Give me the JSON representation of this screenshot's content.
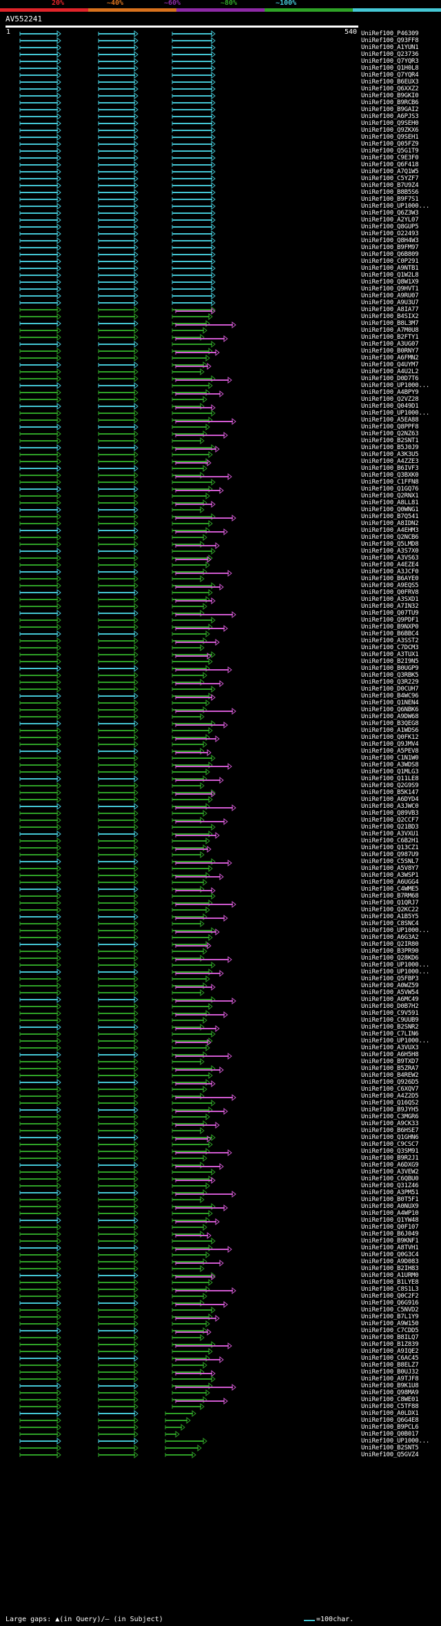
{
  "identity_bands": [
    {
      "label": "20%",
      "color": "#e1242a",
      "from_pct": 0,
      "to_pct": 20
    },
    {
      "label": "~40%",
      "color": "#d9721d",
      "from_pct": 20,
      "to_pct": 40
    },
    {
      "label": "~60%",
      "color": "#8e2aa6",
      "from_pct": 40,
      "to_pct": 60
    },
    {
      "label": "~80%",
      "color": "#2fa327",
      "from_pct": 60,
      "to_pct": 80
    },
    {
      "label": "~100%",
      "color": "#45c8d6",
      "from_pct": 80,
      "to_pct": 100
    }
  ],
  "query": {
    "id": "AV552241",
    "length": 540,
    "start": 1
  },
  "ruler": {
    "start_label": "1",
    "end_label": "540"
  },
  "hits": [
    "UniRef100_P46309",
    "UniRef100_Q93FF8",
    "UniRef100_A1YUN1",
    "UniRef100_Q23736",
    "UniRef100_Q7YQR3",
    "UniRef100_Q1H0L8",
    "UniRef100_Q7YQR4",
    "UniRef100_B6EUX3",
    "UniRef100_Q6XXZ2",
    "UniRef100_B9GKI0",
    "UniRef100_B9RCB6",
    "UniRef100_B9GAI2",
    "UniRef100_A6PJS3",
    "UniRef100_Q9SEH0",
    "UniRef100_Q9ZKX6",
    "UniRef100_Q9SEH1",
    "UniRef100_Q05FZ9",
    "UniRef100_Q5G1T9",
    "UniRef100_C9E3F0",
    "UniRef100_Q6F418",
    "UniRef100_A7Q1W5",
    "UniRef100_C5YZF7",
    "UniRef100_B7U9Z4",
    "UniRef100_B8B5S6",
    "UniRef100_B9F7S1",
    "UniRef100_UP1000...",
    "UniRef100_Q6Z3W3",
    "UniRef100_A2YL07",
    "UniRef100_Q8GUP5",
    "UniRef100_O22493",
    "UniRef100_Q8H4W3",
    "UniRef100_B9FM97",
    "UniRef100_Q6B809",
    "UniRef100_C0P291",
    "UniRef100_A9NTB1",
    "UniRef100_Q1W2L8",
    "UniRef100_Q8W1X9",
    "UniRef100_Q9HVT1",
    "UniRef100_A9RU07",
    "UniRef100_A9U3U7",
    "UniRef100_A8IA77",
    "UniRef100_B4SIX2",
    "UniRef100_B8L3M7",
    "UniRef100_A7M0U8",
    "UniRef100_B2FTY1",
    "UniRef100_A3UG07",
    "UniRef100_B0RNY7",
    "UniRef100_A6FMN2",
    "UniRef100_Q4UYM7",
    "UniRef100_A4U2L2",
    "UniRef100_D0D7T6",
    "UniRef100_UP1000...",
    "UniRef100_A4BPY9",
    "UniRef100_Q2VZ28",
    "UniRef100_Q049D1",
    "UniRef100_UP1000...",
    "UniRef100_A5EA88",
    "UniRef100_Q8PPF8",
    "UniRef100_Q2NZ63",
    "UniRef100_B2SNT1",
    "UniRef100_B5J0J9",
    "UniRef100_A3K3U5",
    "UniRef100_A4ZZE3",
    "UniRef100_B6IVF3",
    "UniRef100_Q3BXK0",
    "UniRef100_C1FFN8",
    "UniRef100_Q1GQ76",
    "UniRef100_Q2RNX1",
    "UniRef100_A8LL81",
    "UniRef100_Q0WNG1",
    "UniRef100_B7Q541",
    "UniRef100_A8IDN2",
    "UniRef100_A4EHM3",
    "UniRef100_Q2NCB6",
    "UniRef100_Q5LMD8",
    "UniRef100_A3S7X0",
    "UniRef100_A3VS63",
    "UniRef100_A4EZE4",
    "UniRef100_A3JCF0",
    "UniRef100_B6AYE0",
    "UniRef100_A9EQS5",
    "UniRef100_Q0FRV8",
    "UniRef100_A3SXD1",
    "UniRef100_A7IN32",
    "UniRef100_Q07TU9",
    "UniRef100_Q9PDF1",
    "UniRef100_B9NXP0",
    "UniRef100_B6BBC4",
    "UniRef100_A3SST2",
    "UniRef100_C7DCM3",
    "UniRef100_A3TUX1",
    "UniRef100_B2I9N5",
    "UniRef100_B0UGP9",
    "UniRef100_Q3RBK5",
    "UniRef100_Q3R229",
    "UniRef100_D0CUH7",
    "UniRef100_B4WC96",
    "UniRef100_Q1NEN4",
    "UniRef100_Q6NBK6",
    "UniRef100_A9DW68",
    "UniRef100_B3QEG8",
    "UniRef100_A1WDS6",
    "UniRef100_Q0FK12",
    "UniRef100_Q9JMV4",
    "UniRef100_A5PEV8",
    "UniRef100_C1N1W0",
    "UniRef100_A3WDS8",
    "UniRef100_Q1MLG3",
    "UniRef100_Q11LE8",
    "UniRef100_Q2G9S9",
    "UniRef100_B5K147",
    "UniRef100_A6DYD4",
    "UniRef100_A3JWC0",
    "UniRef100_Q89VB3",
    "UniRef100_Q2CCF7",
    "UniRef100_Q21BD3",
    "UniRef100_A3VXU1",
    "UniRef100_C6B2H1",
    "UniRef100_Q13CZ1",
    "UniRef100_Q987U9",
    "UniRef100_C5SNL7",
    "UniRef100_A5V8Y7",
    "UniRef100_A3WSP1",
    "UniRef100_A6UGG4",
    "UniRef100_C4WME5",
    "UniRef100_B7RM68",
    "UniRef100_Q1QRJ7",
    "UniRef100_Q2KC22",
    "UniRef100_A1B5Y5",
    "UniRef100_C8SNC4",
    "UniRef100_UP1000...",
    "UniRef100_A6G3A2",
    "UniRef100_Q2IR80",
    "UniRef100_B3PR90",
    "UniRef100_Q28KD6",
    "UniRef100_UP1000...",
    "UniRef100_UP1000...",
    "UniRef100_Q5FBP3",
    "UniRef100_A0WZ59",
    "UniRef100_A5VW54",
    "UniRef100_A6MC49",
    "UniRef100_D0B7H2",
    "UniRef100_C9V591",
    "UniRef100_C9UUB9",
    "UniRef100_B2SNR2",
    "UniRef100_C7LIN6",
    "UniRef100_UP1000...",
    "UniRef100_A3VUX3",
    "UniRef100_A6H5H8",
    "UniRef100_B9TXD7",
    "UniRef100_B5ZRA7",
    "UniRef100_B4REW2",
    "UniRef100_Q926D5",
    "UniRef100_C6XQV7",
    "UniRef100_A4Z2D5",
    "UniRef100_Q16QS2",
    "UniRef100_B9JYH5",
    "UniRef100_C3MGR6",
    "UniRef100_A9CK33",
    "UniRef100_B6HSE7",
    "UniRef100_Q1GHN6",
    "UniRef100_C9CSC7",
    "UniRef100_Q3SM91",
    "UniRef100_B9R2J1",
    "UniRef100_A6DXG9",
    "UniRef100_A3VEW2",
    "UniRef100_C6QBU0",
    "UniRef100_Q31Z46",
    "UniRef100_A3PM51",
    "UniRef100_B0T5F1",
    "UniRef100_A0NUX9",
    "UniRef100_A4WP10",
    "UniRef100_Q1YW48",
    "UniRef100_Q0F107",
    "UniRef100_B6J049",
    "UniRef100_B9KNF1",
    "UniRef100_A8TVH1",
    "UniRef100_Q0G3C4",
    "UniRef100_A9D083",
    "UniRef100_B2IH83",
    "UniRef100_A1URM0",
    "UniRef100_B1LYE8",
    "UniRef100_C8S1L3",
    "UniRef100_Q0C2F2",
    "UniRef100_Q6G916",
    "UniRef100_C5NVD2",
    "UniRef100_B7L1Y9",
    "UniRef100_A9W150",
    "UniRef100_C7CDD5",
    "UniRef100_B8ILQ7",
    "UniRef100_B1Z839",
    "UniRef100_A9IQE2",
    "UniRef100_C6AC45",
    "UniRef100_B8ELZ7",
    "UniRef100_B0UJ32",
    "UniRef100_A9TJF8",
    "UniRef100_B9K1U8",
    "UniRef100_Q98MA9",
    "UniRef100_C8WE01",
    "UniRef100_C5TF88",
    "UniRef100_A0LDX1",
    "UniRef100_Q6G4E8",
    "UniRef100_B9PCL6",
    "UniRef100_Q0B017",
    "UniRef100_UP1000...",
    "UniRef100_B2SNT5",
    "UniRef100_Q5GVZ4"
  ],
  "footer": {
    "text": "Large gaps: ▲(in Query)/— (in Subject)",
    "key_label": "=100char."
  }
}
